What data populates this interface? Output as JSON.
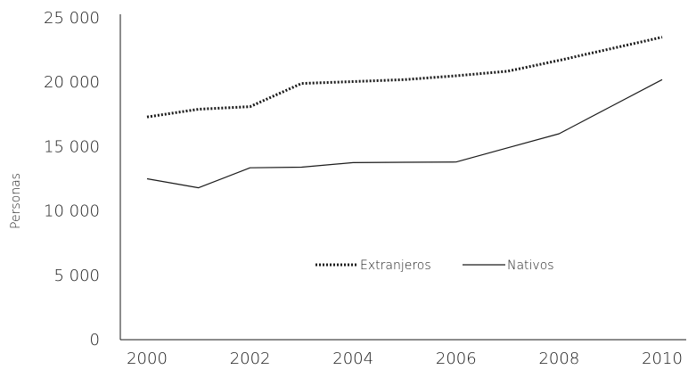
{
  "chart_data": {
    "type": "line",
    "title": "",
    "xlabel": "",
    "ylabel": "Personas",
    "x": [
      2000,
      2001,
      2002,
      2003,
      2004,
      2005,
      2006,
      2007,
      2008,
      2009,
      2010
    ],
    "x_ticks": [
      2000,
      2002,
      2004,
      2006,
      2008,
      2010
    ],
    "x_tick_labels": [
      "2000",
      "2002",
      "2004",
      "2006",
      "2008",
      "2010"
    ],
    "xlim": [
      2000,
      2010
    ],
    "y_ticks": [
      0,
      5000,
      10000,
      15000,
      20000,
      25000
    ],
    "y_tick_labels": [
      "0",
      "5 000",
      "10 000",
      "15 000",
      "20 000",
      "25 000"
    ],
    "ylim": [
      0,
      25000
    ],
    "grid": false,
    "legend_position": "center",
    "series": [
      {
        "name": "Extranjeros",
        "style": "dotted",
        "color": "#1a1a1a",
        "values": [
          17300,
          17900,
          18100,
          19900,
          20050,
          20200,
          20500,
          20850,
          21700,
          22600,
          23500
        ]
      },
      {
        "name": "Nativos",
        "style": "solid",
        "color": "#1a1a1a",
        "values": [
          12500,
          11800,
          13350,
          13400,
          13750,
          13780,
          13800,
          14900,
          16000,
          18100,
          20200
        ]
      }
    ]
  }
}
